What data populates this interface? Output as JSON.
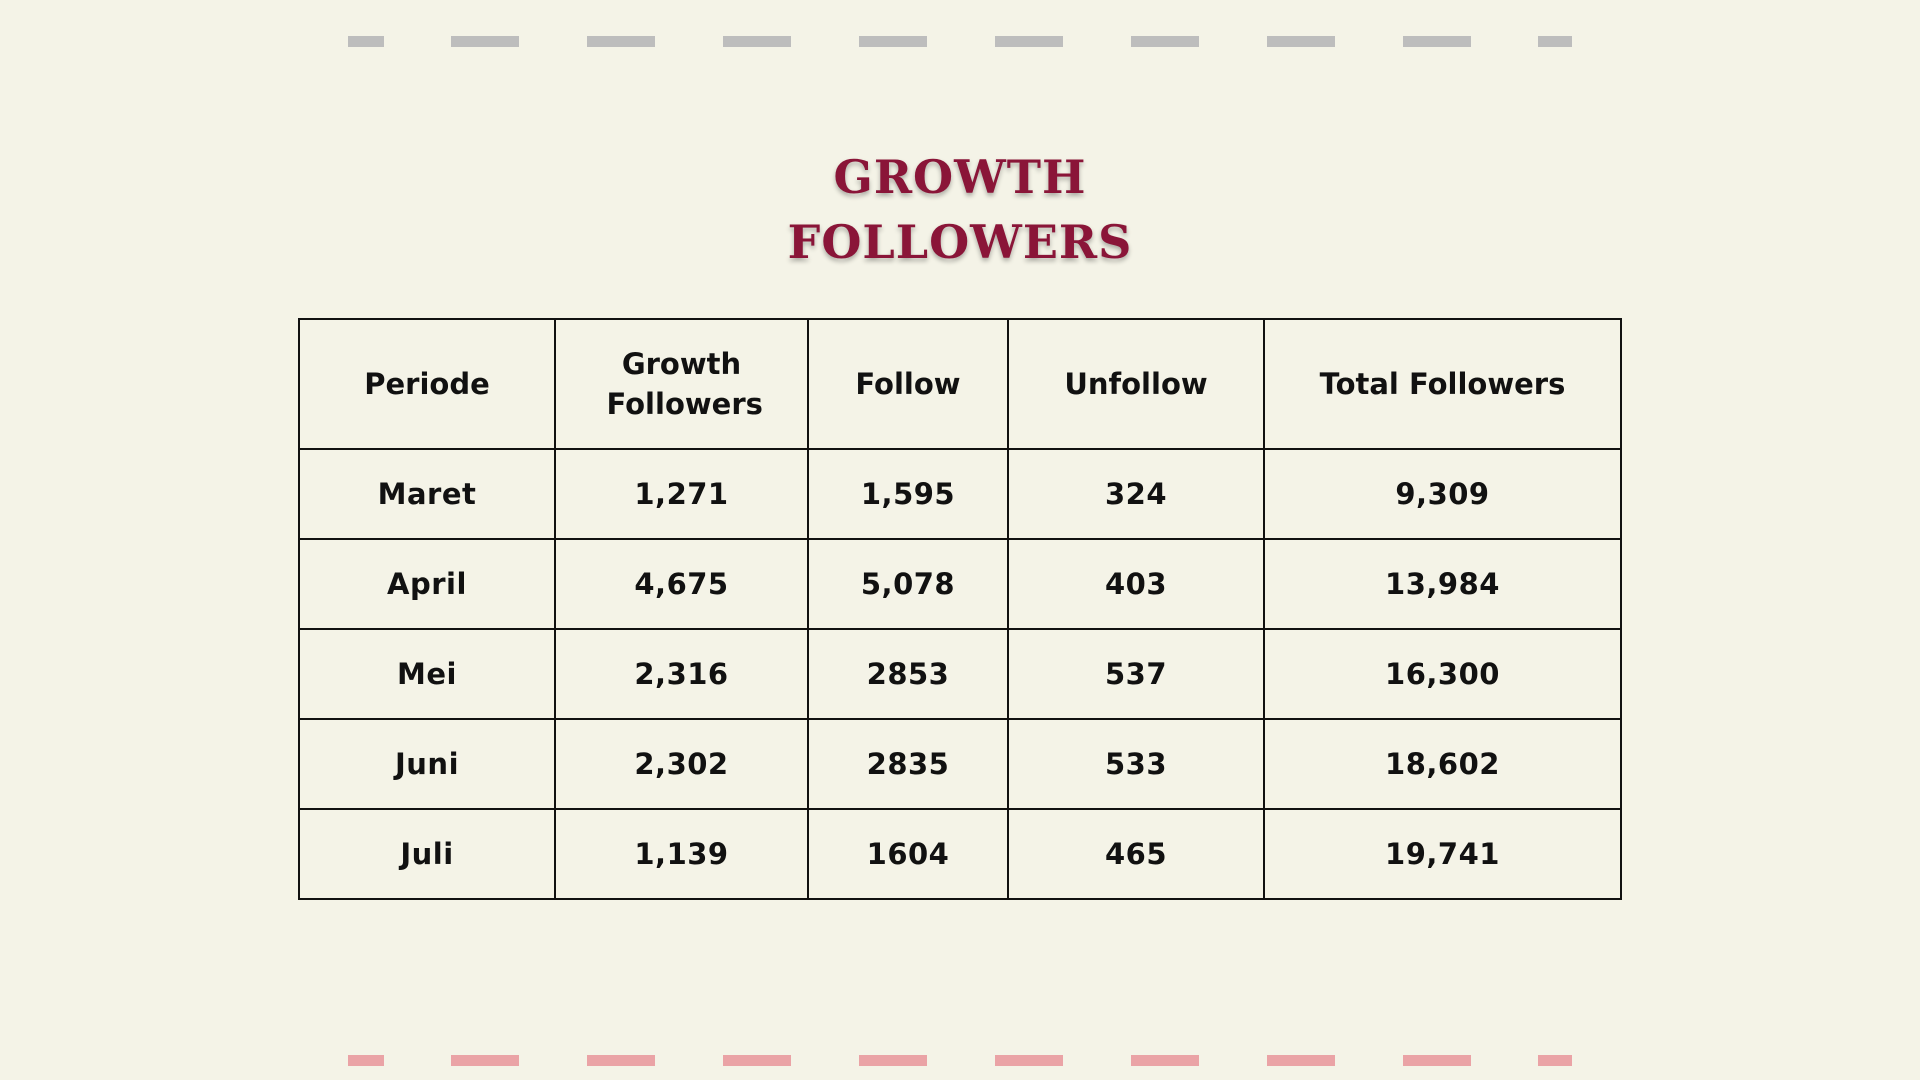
{
  "colors": {
    "background": "#f4f3e7",
    "title": "#8a1538",
    "top_dash": "#bdbdbd",
    "bottom_dash": "#eaa3a6",
    "border": "#111111"
  },
  "title": {
    "line1": "GROWTH",
    "line2": "FOLLOWERS"
  },
  "table": {
    "headers": [
      "Periode",
      "Growth Followers",
      "Follow",
      "Unfollow",
      "Total Followers"
    ],
    "rows": [
      [
        "Maret",
        "1,271",
        "1,595",
        "324",
        "9,309"
      ],
      [
        "April",
        "4,675",
        "5,078",
        "403",
        "13,984"
      ],
      [
        "Mei",
        "2,316",
        "2853",
        "537",
        "16,300"
      ],
      [
        "Juni",
        "2,302",
        "2835",
        "533",
        "18,602"
      ],
      [
        "Juli",
        "1,139",
        "1604",
        "465",
        "19,741"
      ]
    ]
  }
}
